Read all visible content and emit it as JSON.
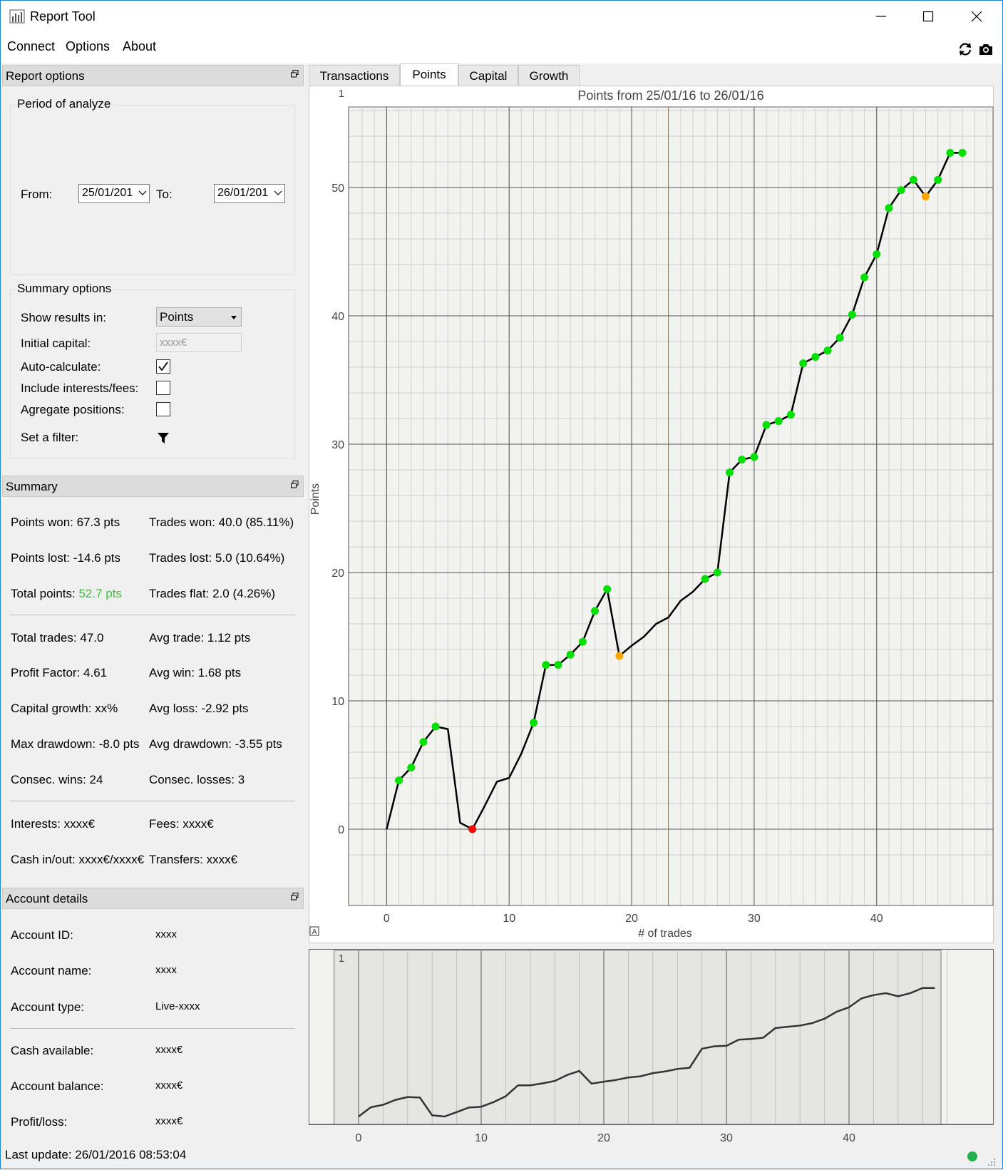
{
  "window": {
    "title": "Report Tool",
    "minimize": "—",
    "maximize": "☐",
    "close": "✕"
  },
  "menu": {
    "items": [
      "Connect",
      "Options",
      "About"
    ],
    "icons": [
      "refresh-icon",
      "camera-icon"
    ]
  },
  "report_options": {
    "header": "Report options",
    "period": {
      "title": "Period of analyze",
      "from_label": "From:",
      "from_value": "25/01/201",
      "to_label": "To:",
      "to_value": "26/01/201"
    },
    "summary_options": {
      "title": "Summary options",
      "show_results_label": "Show results in:",
      "show_results_value": "Points",
      "initial_capital_label": "Initial capital:",
      "initial_capital_placeholder": "xxxx€",
      "auto_calc_label": "Auto-calculate:",
      "auto_calc_checked": true,
      "include_fees_label": "Include interests/fees:",
      "include_fees_checked": false,
      "aggregate_label": "Agregate positions:",
      "aggregate_checked": false,
      "filter_label": "Set a filter:"
    }
  },
  "summary": {
    "header": "Summary",
    "points_won": "Points won: 67.3 pts",
    "trades_won": "Trades won: 40.0 (85.11%)",
    "points_lost": "Points lost: -14.6 pts",
    "trades_lost": "Trades lost: 5.0 (10.64%)",
    "total_points_label": "Total points: ",
    "total_points_value": "52.7 pts",
    "trades_flat": "Trades flat: 2.0 (4.26%)",
    "total_trades": "Total trades: 47.0",
    "avg_trade": "Avg trade: 1.12 pts",
    "profit_factor": "Profit Factor: 4.61",
    "avg_win": "Avg win: 1.68 pts",
    "capital_growth": "Capital growth: xx%",
    "avg_loss": "Avg loss: -2.92 pts",
    "max_drawdown": "Max drawdown: -8.0 pts",
    "avg_drawdown": "Avg drawdown: -3.55 pts",
    "consec_wins": "Consec. wins: 24",
    "consec_losses": "Consec. losses: 3",
    "interests": "Interests: xxxx€",
    "fees": "Fees: xxxx€",
    "cash_inout": "Cash in/out: xxxx€/xxxx€",
    "transfers": "Transfers: xxxx€"
  },
  "account": {
    "header": "Account details",
    "rows": [
      {
        "label": "Account ID:",
        "value": "xxxx"
      },
      {
        "label": "Account name:",
        "value": "xxxx"
      },
      {
        "label": "Account type:",
        "value": "Live-xxxx"
      },
      {
        "label": "Cash available:",
        "value": "xxxx€"
      },
      {
        "label": "Account balance:",
        "value": "xxxx€"
      },
      {
        "label": "Profit/loss:",
        "value": "xxxx€"
      }
    ]
  },
  "tabs": [
    "Transactions",
    "Points",
    "Capital",
    "Growth"
  ],
  "active_tab": "Points",
  "status": {
    "last_update": "Last update: 26/01/2016 08:53:04",
    "connection_color": "#22b14c"
  },
  "chart_data": {
    "type": "line",
    "title": "Points from 25/01/16 to 26/01/16",
    "xlabel": "# of trades",
    "ylabel": "Points",
    "corner_label": "1",
    "xlim": [
      -2,
      49.5
    ],
    "ylim": [
      -3.8,
      56.5
    ],
    "xticks": [
      0,
      10,
      20,
      30,
      40
    ],
    "yticks": [
      0,
      10,
      20,
      30,
      40,
      50
    ],
    "marker_line_x": 23,
    "marker_line_color": "#e05050",
    "line_color": "#000000",
    "colors": {
      "win": "#00e000",
      "loss": "#ff0000",
      "flat": "#ffa500"
    },
    "x": [
      0,
      1,
      2,
      3,
      4,
      5,
      6,
      7,
      8,
      9,
      10,
      11,
      12,
      13,
      14,
      15,
      16,
      17,
      18,
      19,
      20,
      21,
      22,
      23,
      24,
      25,
      26,
      27,
      28,
      29,
      30,
      31,
      32,
      33,
      34,
      35,
      36,
      37,
      38,
      39,
      40,
      41,
      42,
      43,
      44,
      45,
      46,
      47
    ],
    "y": [
      0,
      3.8,
      4.8,
      6.8,
      8.0,
      7.8,
      0.5,
      0,
      1.8,
      3.7,
      4.0,
      5.9,
      8.3,
      12.8,
      12.8,
      13.6,
      14.6,
      17.0,
      18.7,
      13.5,
      14.3,
      15.0,
      16.0,
      16.5,
      17.8,
      18.5,
      19.5,
      20.0,
      27.8,
      28.8,
      29.0,
      31.5,
      31.8,
      32.3,
      36.3,
      36.8,
      37.3,
      38.3,
      40.1,
      43.0,
      44.8,
      48.4,
      49.8,
      50.6,
      49.3,
      50.6,
      52.7,
      52.7
    ],
    "markers": [
      null,
      "win",
      "win",
      "win",
      "win",
      null,
      null,
      "loss",
      null,
      null,
      null,
      null,
      "win",
      "win",
      "win",
      "win",
      "win",
      "win",
      "win",
      "flat",
      null,
      null,
      null,
      null,
      null,
      null,
      "win",
      "win",
      "win",
      "win",
      "win",
      "win",
      "win",
      "win",
      "win",
      "win",
      "win",
      "win",
      "win",
      "win",
      "win",
      "win",
      "win",
      "win",
      "flat",
      "win",
      "win",
      "win"
    ],
    "overview": {
      "corner_label": "1",
      "xticks": [
        0,
        10,
        20,
        30,
        40
      ],
      "xlim": [
        -2,
        49.5
      ],
      "region_x": [
        -2,
        47.5
      ]
    }
  }
}
